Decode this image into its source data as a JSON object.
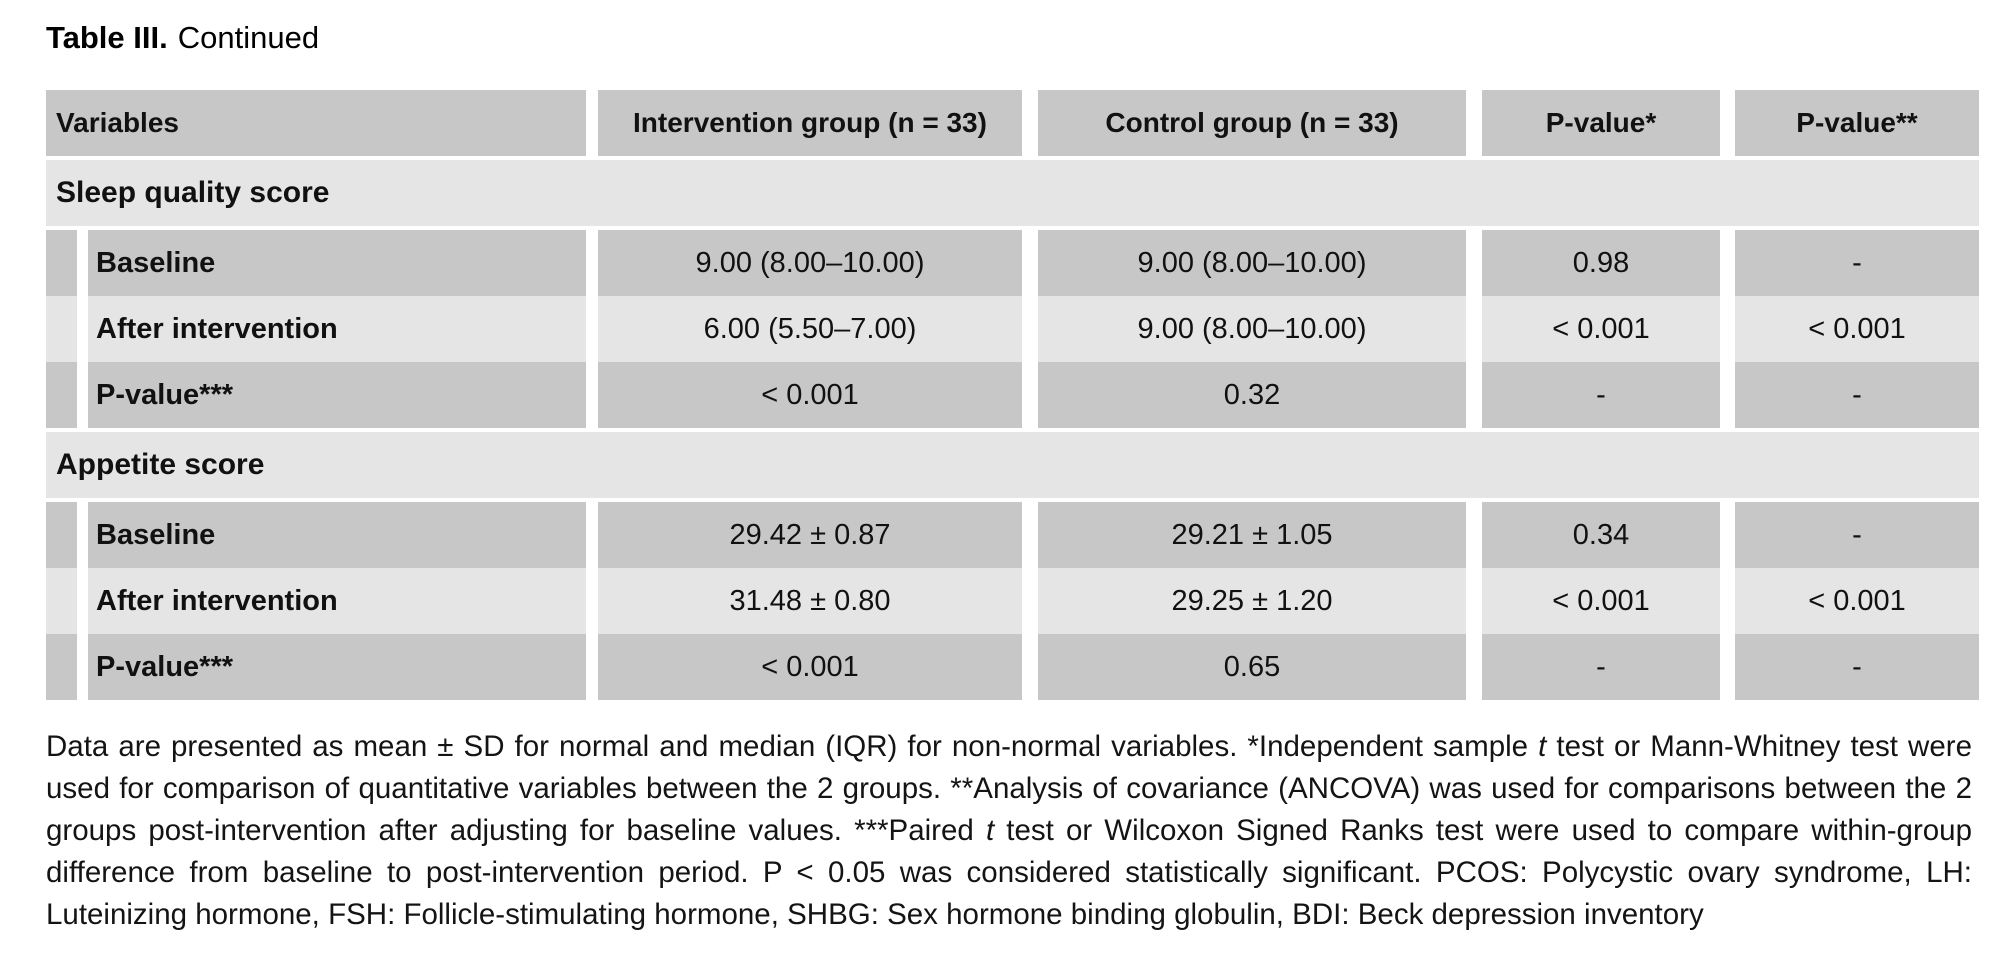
{
  "title": {
    "bold": "Table III.",
    "regular": "Continued"
  },
  "colors": {
    "row_dark": "#c6c7c6",
    "row_light": "#e5e5e5"
  },
  "table": {
    "headers": {
      "variables": "Variables",
      "intervention": "Intervention group (n = 33)",
      "control": "Control group (n = 33)",
      "p1": "P-value*",
      "p2": "P-value**"
    },
    "sections": [
      {
        "name": "Sleep quality score",
        "rows": [
          {
            "label": "Baseline",
            "intervention": "9.00 (8.00–10.00)",
            "control": "9.00 (8.00–10.00)",
            "p1": "0.98",
            "p2": "-"
          },
          {
            "label": "After intervention",
            "intervention": "6.00 (5.50–7.00)",
            "control": "9.00 (8.00–10.00)",
            "p1": "< 0.001",
            "p2": "< 0.001"
          },
          {
            "label": "P-value***",
            "intervention": "< 0.001",
            "control": "0.32",
            "p1": "-",
            "p2": "-"
          }
        ]
      },
      {
        "name": "Appetite score",
        "rows": [
          {
            "label": "Baseline",
            "intervention": "29.42 ± 0.87",
            "control": "29.21 ± 1.05",
            "p1": "0.34",
            "p2": "-"
          },
          {
            "label": "After intervention",
            "intervention": "31.48 ± 0.80",
            "control": "29.25 ± 1.20",
            "p1": "< 0.001",
            "p2": "< 0.001"
          },
          {
            "label": "P-value***",
            "intervention": "< 0.001",
            "control": "0.65",
            "p1": "-",
            "p2": "-"
          }
        ]
      }
    ]
  },
  "footnote": {
    "segments": [
      {
        "text": "Data are presented as mean ± SD for normal and median (IQR) for non-normal variables. *Independent sample "
      },
      {
        "text": "t",
        "italic": true
      },
      {
        "text": " test or Mann-Whitney test were used for comparison of quantitative variables between the 2 groups. **Analysis of covariance (ANCOVA) was used for comparisons between the 2 groups post-intervention after adjusting for baseline values. ***Paired "
      },
      {
        "text": "t",
        "italic": true
      },
      {
        "text": " test or Wilcoxon Signed Ranks test were used to compare within-group difference from baseline to post-intervention period. P < 0.05 was considered statistically significant. PCOS: Polycystic ovary syndrome, LH: Luteinizing hormone, FSH: Follicle-stimulating hormone, SHBG: Sex hormone binding globulin, BDI: Beck depression inventory"
      }
    ]
  }
}
